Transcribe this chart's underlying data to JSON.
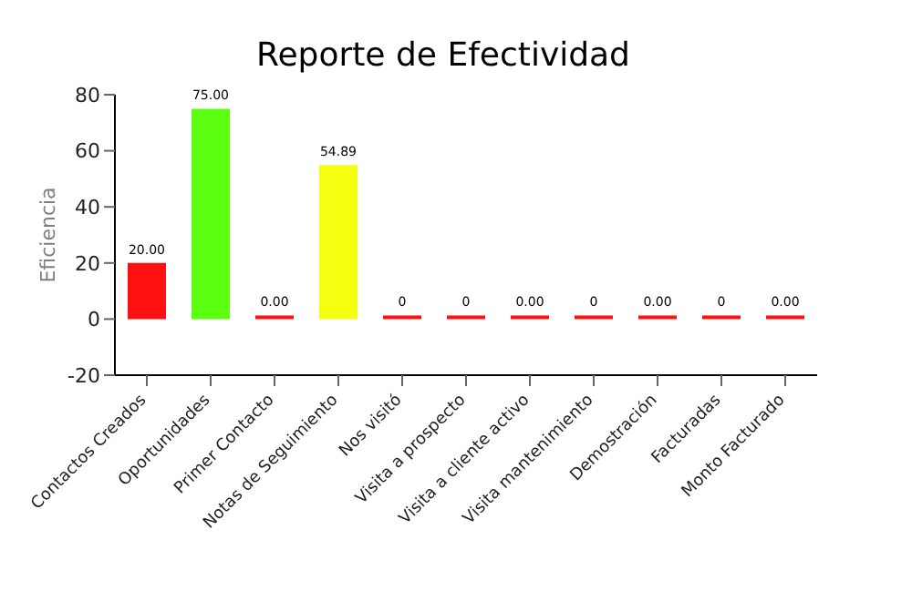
{
  "chart_data": {
    "type": "bar",
    "title": "Reporte de Efectividad",
    "ylabel": "Eficiencia",
    "categories": [
      "Contactos Creados",
      "Oportunidades",
      "Primer Contacto",
      "Notas de Seguimiento",
      "Nos visitó",
      "Visita a prospecto",
      "Visita a cliente activo",
      "Visita mantenimiento",
      "Demostración",
      "Facturadas",
      "Monto Facturado"
    ],
    "values": [
      20,
      75,
      0,
      54.89,
      0,
      0,
      0,
      0,
      0,
      0,
      0
    ],
    "colors": [
      "#ff1010",
      "#5cff10",
      "#ff1010",
      "#f5ff10",
      "#ff1010",
      "#ff1010",
      "#ff1010",
      "#ff1010",
      "#ff1010",
      "#ff1010",
      "#ff1010"
    ],
    "value_labels": [
      "20.00",
      "75.00",
      "0.00",
      "54.89",
      "0",
      "0",
      "0.00",
      "0",
      "0.00",
      "0",
      "0.00"
    ],
    "ylim": [
      -20,
      80
    ],
    "yticks": [
      -20,
      0,
      20,
      40,
      60,
      80
    ]
  }
}
